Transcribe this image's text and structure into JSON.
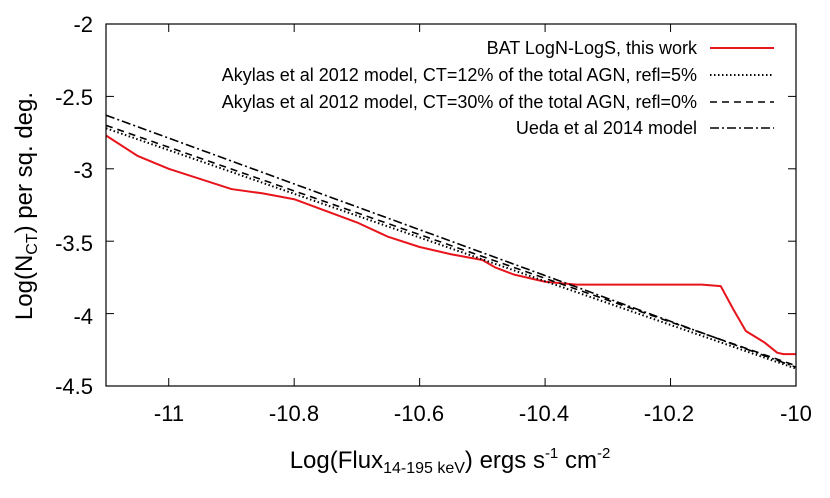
{
  "chart_data": {
    "type": "line",
    "xlabel": {
      "main": "Log(Flux",
      "sub": "14-195 keV",
      "after": ") ergs s",
      "sup1": "-1",
      "mid": " cm",
      "sup2": "-2"
    },
    "ylabel": {
      "main": "Log(N",
      "sub": "CT",
      "after": ") per sq. deg."
    },
    "xlim": [
      -11.1,
      -10.0
    ],
    "ylim": [
      -4.5,
      -2.0
    ],
    "xticks": [
      -11,
      -10.8,
      -10.6,
      -10.4,
      -10.2,
      -10
    ],
    "xtick_labels": [
      "-11",
      "-10.8",
      "-10.6",
      "-10.4",
      "-10.2",
      "-10"
    ],
    "yticks": [
      -2,
      -2.5,
      -3,
      -3.5,
      -4,
      -4.5
    ],
    "ytick_labels": [
      "-2",
      "-2.5",
      "-3",
      "-3.5",
      "-4",
      "-4.5"
    ],
    "grid": false,
    "legend_position": "top-right",
    "series": [
      {
        "name": "BAT LogN-LogS, this work",
        "color": "#e8141c",
        "style": "solid",
        "x": [
          -11.1,
          -11.05,
          -11.0,
          -10.95,
          -10.9,
          -10.85,
          -10.8,
          -10.75,
          -10.7,
          -10.65,
          -10.6,
          -10.55,
          -10.5,
          -10.48,
          -10.45,
          -10.4,
          -10.35,
          -10.3,
          -10.25,
          -10.2,
          -10.15,
          -10.12,
          -10.1,
          -10.08,
          -10.05,
          -10.03,
          -10.02,
          -10.0
        ],
        "y": [
          -2.77,
          -2.91,
          -3.0,
          -3.07,
          -3.14,
          -3.17,
          -3.21,
          -3.29,
          -3.37,
          -3.47,
          -3.54,
          -3.59,
          -3.63,
          -3.68,
          -3.73,
          -3.78,
          -3.8,
          -3.8,
          -3.8,
          -3.8,
          -3.8,
          -3.81,
          -3.97,
          -4.12,
          -4.2,
          -4.27,
          -4.28,
          -4.28
        ]
      },
      {
        "name": "Akylas et al 2012 model, CT=12% of the total AGN, refl=5%",
        "color": "#000000",
        "style": "dotted",
        "x": [
          -11.1,
          -10.0
        ],
        "y": [
          -2.72,
          -4.38
        ]
      },
      {
        "name": "Akylas et al 2012 model, CT=30% of the total AGN, refl=0%",
        "color": "#000000",
        "style": "dashed",
        "x": [
          -11.1,
          -10.0
        ],
        "y": [
          -2.7,
          -4.36
        ]
      },
      {
        "name": "Ueda et al 2014 model",
        "color": "#000000",
        "style": "dashdot",
        "x": [
          -11.1,
          -10.0
        ],
        "y": [
          -2.63,
          -4.37
        ]
      }
    ]
  }
}
